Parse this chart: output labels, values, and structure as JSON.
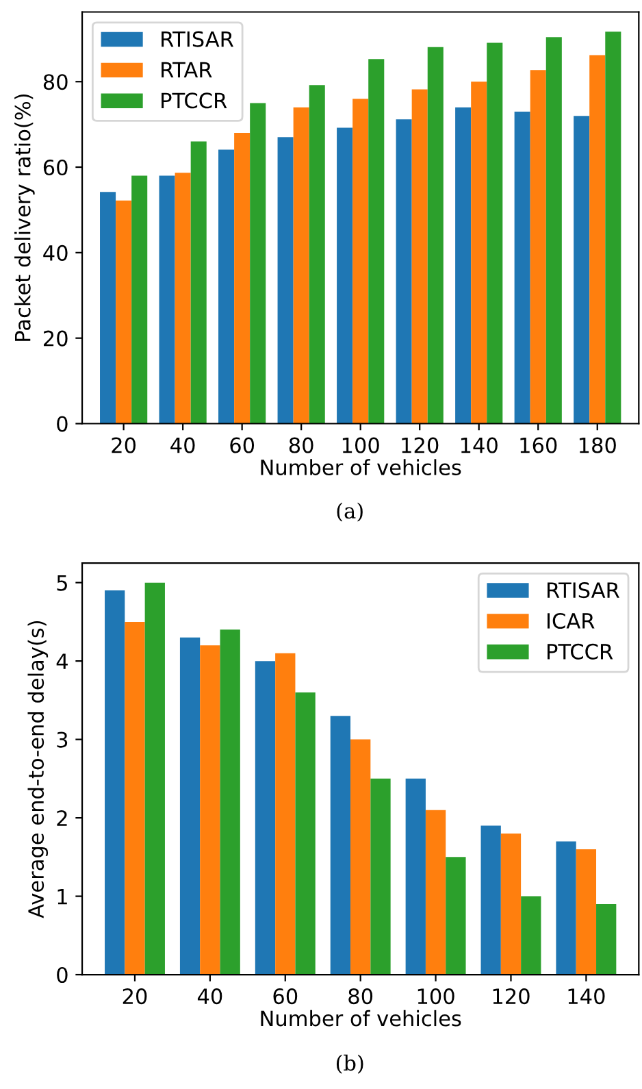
{
  "chart_data": [
    {
      "type": "bar",
      "xlabel": "Number of vehicles",
      "ylabel": "Packet delivery ratio(%)",
      "categories": [
        "20",
        "40",
        "60",
        "80",
        "100",
        "120",
        "140",
        "160",
        "180"
      ],
      "series": [
        {
          "name": "RTISAR",
          "color": "#1f77b4",
          "values": [
            54.2,
            58,
            64.1,
            67,
            69.2,
            71.2,
            74,
            73,
            72
          ]
        },
        {
          "name": "RTAR",
          "color": "#ff7f0e",
          "values": [
            52.2,
            58.7,
            68,
            74,
            76,
            78.2,
            80,
            82.7,
            86.2
          ]
        },
        {
          "name": "PTCCR",
          "color": "#2ca02c",
          "values": [
            58,
            66,
            75,
            79.2,
            85.3,
            88.1,
            89.1,
            90.4,
            91.7
          ]
        }
      ],
      "ylim": [
        0,
        96.3
      ],
      "yticks": [
        0,
        20,
        40,
        60,
        80
      ],
      "legend": "top left",
      "grid": false,
      "annotations": [
        "(a)"
      ]
    },
    {
      "type": "bar",
      "xlabel": "Number of vehicles",
      "ylabel": "Average end-to-end delay(s)",
      "categories": [
        "20",
        "40",
        "60",
        "80",
        "100",
        "120",
        "140"
      ],
      "series": [
        {
          "name": "RTISAR",
          "color": "#1f77b4",
          "values": [
            4.9,
            4.3,
            4.0,
            3.3,
            2.5,
            1.9,
            1.7
          ]
        },
        {
          "name": "ICAR",
          "color": "#ff7f0e",
          "values": [
            4.5,
            4.2,
            4.1,
            3.0,
            2.1,
            1.8,
            1.6
          ]
        },
        {
          "name": "PTCCR",
          "color": "#2ca02c",
          "values": [
            5.0,
            4.4,
            3.6,
            2.5,
            1.5,
            1.0,
            0.9
          ]
        }
      ],
      "ylim": [
        0,
        5.25
      ],
      "yticks": [
        0,
        1,
        2,
        3,
        4,
        5
      ],
      "legend": "top right",
      "grid": false,
      "annotations": [
        "(b)"
      ]
    }
  ]
}
